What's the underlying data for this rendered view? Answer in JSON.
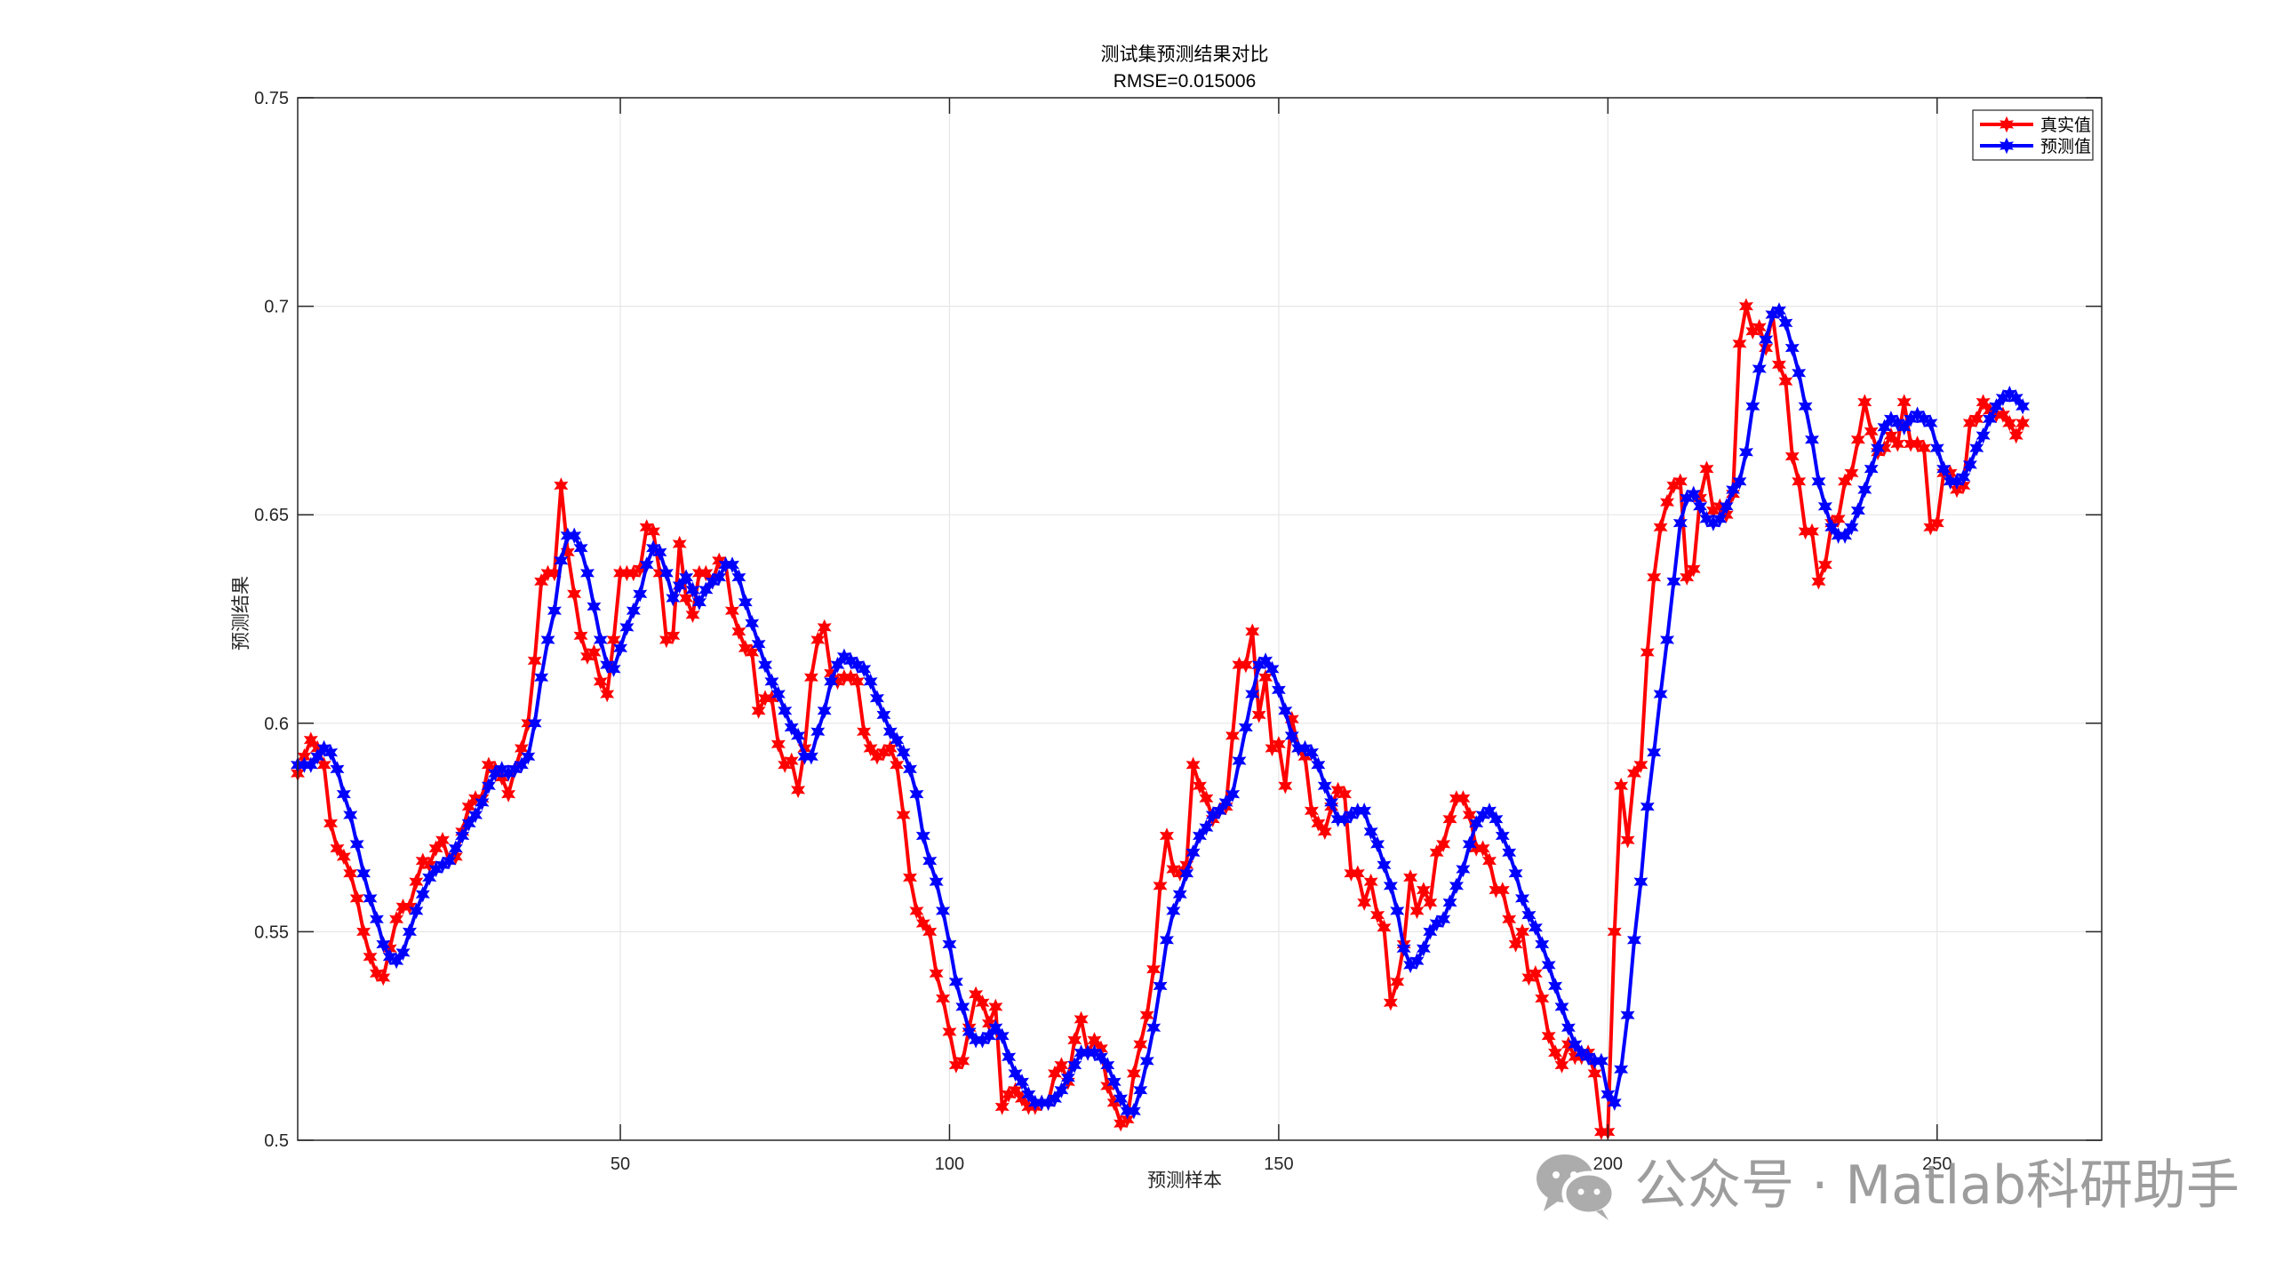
{
  "watermark": {
    "text": "公众号 · Matlab科研助手",
    "icon": "wechat-icon"
  },
  "chart_data": {
    "type": "line",
    "title": "测试集预测结果对比",
    "subtitle": "RMSE=0.015006",
    "xlabel": "预测样本",
    "ylabel": "预测结果",
    "xlim": [
      1,
      275
    ],
    "ylim": [
      0.5,
      0.75
    ],
    "xticks": [
      50,
      100,
      150,
      200,
      250
    ],
    "yticks": [
      0.5,
      0.55,
      0.6,
      0.65,
      0.7,
      0.75
    ],
    "ytick_labels": [
      "0.5",
      "0.55",
      "0.6",
      "0.65",
      "0.7",
      "0.75"
    ],
    "grid": true,
    "legend_position": "top-right",
    "series": [
      {
        "name": "真实值",
        "color": "#ff0000",
        "marker": "hexagram",
        "values": [
          0.588,
          0.592,
          0.596,
          0.594,
          0.59,
          0.576,
          0.57,
          0.568,
          0.564,
          0.558,
          0.55,
          0.544,
          0.54,
          0.539,
          0.546,
          0.553,
          0.556,
          0.556,
          0.562,
          0.567,
          0.566,
          0.57,
          0.572,
          0.567,
          0.568,
          0.574,
          0.58,
          0.582,
          0.582,
          0.59,
          0.589,
          0.587,
          0.583,
          0.589,
          0.594,
          0.6,
          0.615,
          0.634,
          0.636,
          0.636,
          0.657,
          0.641,
          0.631,
          0.621,
          0.616,
          0.617,
          0.61,
          0.607,
          0.62,
          0.636,
          0.636,
          0.636,
          0.637,
          0.647,
          0.646,
          0.636,
          0.62,
          0.621,
          0.643,
          0.63,
          0.626,
          0.636,
          0.636,
          0.634,
          0.639,
          0.638,
          0.627,
          0.622,
          0.618,
          0.617,
          0.603,
          0.606,
          0.606,
          0.595,
          0.59,
          0.591,
          0.584,
          0.594,
          0.611,
          0.62,
          0.623,
          0.612,
          0.61,
          0.611,
          0.611,
          0.61,
          0.598,
          0.594,
          0.592,
          0.593,
          0.594,
          0.59,
          0.578,
          0.563,
          0.555,
          0.552,
          0.55,
          0.54,
          0.534,
          0.526,
          0.518,
          0.519,
          0.527,
          0.535,
          0.533,
          0.528,
          0.532,
          0.508,
          0.511,
          0.512,
          0.51,
          0.508,
          0.508,
          0.509,
          0.509,
          0.516,
          0.518,
          0.514,
          0.524,
          0.529,
          0.521,
          0.524,
          0.522,
          0.513,
          0.509,
          0.504,
          0.505,
          0.516,
          0.523,
          0.53,
          0.541,
          0.561,
          0.573,
          0.565,
          0.564,
          0.566,
          0.59,
          0.585,
          0.582,
          0.577,
          0.579,
          0.58,
          0.597,
          0.614,
          0.614,
          0.622,
          0.602,
          0.611,
          0.594,
          0.595,
          0.585,
          0.601,
          0.594,
          0.592,
          0.579,
          0.576,
          0.574,
          0.58,
          0.584,
          0.583,
          0.564,
          0.564,
          0.557,
          0.562,
          0.554,
          0.551,
          0.533,
          0.538,
          0.547,
          0.563,
          0.555,
          0.56,
          0.557,
          0.569,
          0.571,
          0.577,
          0.582,
          0.582,
          0.578,
          0.57,
          0.57,
          0.567,
          0.56,
          0.56,
          0.553,
          0.547,
          0.55,
          0.539,
          0.54,
          0.534,
          0.525,
          0.521,
          0.518,
          0.523,
          0.52,
          0.52,
          0.521,
          0.516,
          0.502,
          0.502,
          0.55,
          0.585,
          0.572,
          0.588,
          0.59,
          0.617,
          0.635,
          0.647,
          0.653,
          0.657,
          0.658,
          0.635,
          0.637,
          0.654,
          0.661,
          0.651,
          0.652,
          0.65,
          0.655,
          0.691,
          0.7,
          0.694,
          0.695,
          0.69,
          0.698,
          0.686,
          0.682,
          0.664,
          0.658,
          0.646,
          0.646,
          0.634,
          0.638,
          0.648,
          0.649,
          0.658,
          0.66,
          0.668,
          0.677,
          0.67,
          0.665,
          0.666,
          0.669,
          0.667,
          0.677,
          0.667,
          0.667,
          0.666,
          0.647,
          0.648,
          0.66,
          0.66,
          0.656,
          0.657,
          0.672,
          0.673,
          0.677,
          0.675,
          0.674,
          0.674,
          0.672,
          0.669,
          0.672
        ]
      },
      {
        "name": "预测值",
        "color": "#0000ff",
        "marker": "hexagram",
        "values": [
          0.59,
          0.59,
          0.59,
          0.592,
          0.594,
          0.593,
          0.589,
          0.583,
          0.578,
          0.571,
          0.564,
          0.558,
          0.553,
          0.547,
          0.544,
          0.543,
          0.545,
          0.55,
          0.555,
          0.559,
          0.563,
          0.565,
          0.566,
          0.567,
          0.57,
          0.573,
          0.576,
          0.578,
          0.581,
          0.585,
          0.588,
          0.589,
          0.588,
          0.589,
          0.59,
          0.592,
          0.6,
          0.611,
          0.62,
          0.627,
          0.639,
          0.645,
          0.645,
          0.642,
          0.636,
          0.628,
          0.62,
          0.614,
          0.613,
          0.618,
          0.623,
          0.627,
          0.631,
          0.638,
          0.642,
          0.641,
          0.636,
          0.63,
          0.633,
          0.635,
          0.632,
          0.629,
          0.632,
          0.634,
          0.635,
          0.638,
          0.638,
          0.635,
          0.629,
          0.624,
          0.619,
          0.614,
          0.61,
          0.607,
          0.603,
          0.599,
          0.597,
          0.592,
          0.592,
          0.598,
          0.603,
          0.61,
          0.614,
          0.616,
          0.615,
          0.614,
          0.613,
          0.61,
          0.606,
          0.602,
          0.598,
          0.596,
          0.593,
          0.589,
          0.583,
          0.573,
          0.567,
          0.562,
          0.555,
          0.547,
          0.538,
          0.532,
          0.526,
          0.524,
          0.524,
          0.525,
          0.527,
          0.525,
          0.52,
          0.516,
          0.514,
          0.511,
          0.509,
          0.509,
          0.509,
          0.51,
          0.512,
          0.515,
          0.518,
          0.521,
          0.521,
          0.521,
          0.52,
          0.518,
          0.514,
          0.51,
          0.507,
          0.507,
          0.512,
          0.519,
          0.527,
          0.537,
          0.548,
          0.555,
          0.559,
          0.564,
          0.569,
          0.573,
          0.575,
          0.578,
          0.579,
          0.581,
          0.583,
          0.591,
          0.599,
          0.607,
          0.614,
          0.615,
          0.613,
          0.608,
          0.603,
          0.597,
          0.594,
          0.594,
          0.593,
          0.59,
          0.585,
          0.581,
          0.577,
          0.577,
          0.578,
          0.579,
          0.579,
          0.574,
          0.571,
          0.566,
          0.561,
          0.555,
          0.546,
          0.542,
          0.543,
          0.546,
          0.55,
          0.552,
          0.553,
          0.557,
          0.561,
          0.565,
          0.571,
          0.576,
          0.578,
          0.579,
          0.577,
          0.573,
          0.569,
          0.564,
          0.558,
          0.554,
          0.551,
          0.547,
          0.542,
          0.537,
          0.532,
          0.527,
          0.523,
          0.521,
          0.52,
          0.519,
          0.519,
          0.511,
          0.509,
          0.517,
          0.53,
          0.548,
          0.562,
          0.58,
          0.593,
          0.607,
          0.62,
          0.634,
          0.648,
          0.654,
          0.655,
          0.652,
          0.649,
          0.648,
          0.649,
          0.652,
          0.656,
          0.658,
          0.665,
          0.676,
          0.685,
          0.692,
          0.698,
          0.699,
          0.696,
          0.69,
          0.684,
          0.676,
          0.668,
          0.658,
          0.652,
          0.647,
          0.645,
          0.645,
          0.647,
          0.651,
          0.656,
          0.661,
          0.666,
          0.671,
          0.673,
          0.672,
          0.671,
          0.673,
          0.674,
          0.673,
          0.672,
          0.666,
          0.661,
          0.658,
          0.658,
          0.659,
          0.662,
          0.666,
          0.669,
          0.673,
          0.676,
          0.678,
          0.679,
          0.678,
          0.676
        ]
      }
    ]
  }
}
